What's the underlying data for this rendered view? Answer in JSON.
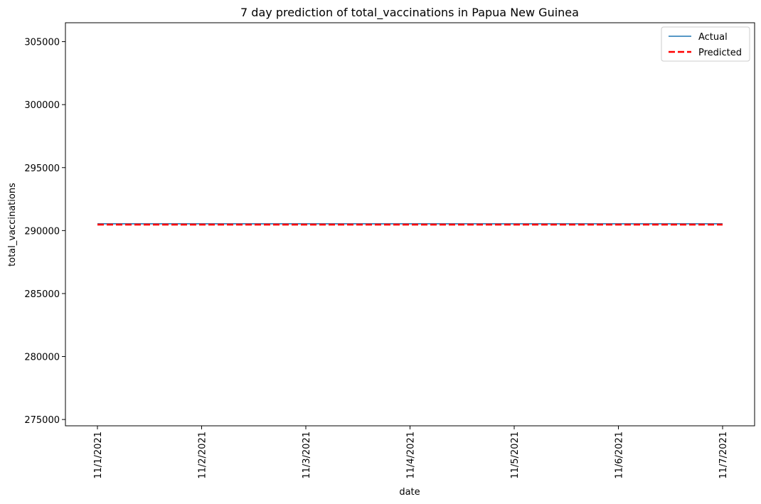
{
  "chart_data": {
    "type": "line",
    "title": "7 day prediction of total_vaccinations in Papua New Guinea",
    "xlabel": "date",
    "ylabel": "total_vaccinations",
    "x": [
      "11/1/2021",
      "11/2/2021",
      "11/3/2021",
      "11/4/2021",
      "11/5/2021",
      "11/6/2021",
      "11/7/2021"
    ],
    "ylim": [
      274500,
      306500
    ],
    "yticks": [
      275000,
      280000,
      285000,
      290000,
      295000,
      300000,
      305000
    ],
    "grid": false,
    "legend_position": "top-right",
    "series": [
      {
        "name": "Actual",
        "values": [
          290542,
          290542,
          290542,
          290542,
          290542,
          290542,
          290542
        ],
        "color": "#1f77b4",
        "style": "solid"
      },
      {
        "name": "Predicted",
        "values": [
          290480,
          290480,
          290480,
          290480,
          290480,
          290480,
          290480
        ],
        "color": "#ff0000",
        "style": "dashed"
      }
    ]
  }
}
